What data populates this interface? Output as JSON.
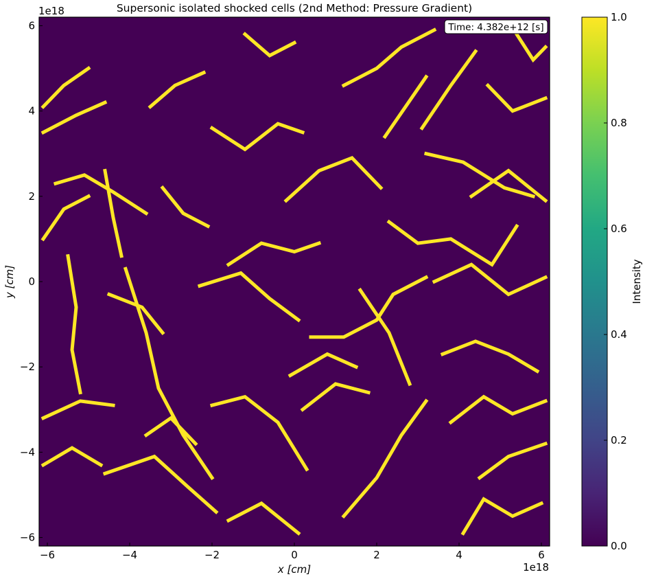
{
  "chart_data": {
    "type": "heatmap",
    "title": "Supersonic isolated shocked cells (2nd Method: Pressure Gradient)",
    "xlabel": "x [cm]",
    "ylabel": "y [cm]",
    "x_offset_label": "1e18",
    "y_offset_label": "1e18",
    "xlim": [
      -6.2,
      6.2
    ],
    "ylim": [
      -6.2,
      6.2
    ],
    "x_ticks": [
      -6,
      -4,
      -2,
      0,
      2,
      4,
      6
    ],
    "y_ticks": [
      -6,
      -4,
      -2,
      0,
      2,
      4,
      6
    ],
    "x_tick_labels": [
      "−6",
      "−4",
      "−2",
      "0",
      "2",
      "4",
      "6"
    ],
    "y_tick_labels": [
      "−6",
      "−4",
      "−2",
      "0",
      "2",
      "4",
      "6"
    ],
    "annotation": "Time: 4.382e+12 [s]",
    "annotation_position": "top-right",
    "grid": false,
    "colormap": "viridis",
    "colorbar": {
      "label": "Intensity",
      "range": [
        0,
        1
      ],
      "ticks": [
        0,
        0.2,
        0.4,
        0.6,
        0.8,
        1
      ],
      "tick_labels": [
        "0.0",
        "0.2",
        "0.4",
        "0.6",
        "0.8",
        "1.0"
      ]
    },
    "values_description_binary": [
      0,
      1
    ],
    "background_color": "#440154",
    "shock_color": "#fde725",
    "shock_fronts": [
      [
        [
          -6.1,
          3.5
        ],
        [
          -5.3,
          3.9
        ],
        [
          -4.6,
          4.2
        ]
      ],
      [
        [
          -6.1,
          4.1
        ],
        [
          -5.6,
          4.6
        ],
        [
          -5.0,
          5.0
        ]
      ],
      [
        [
          -5.8,
          2.3
        ],
        [
          -5.1,
          2.5
        ],
        [
          -4.4,
          2.1
        ],
        [
          -3.6,
          1.6
        ]
      ],
      [
        [
          -4.6,
          2.6
        ],
        [
          -4.4,
          1.5
        ],
        [
          -4.2,
          0.6
        ]
      ],
      [
        [
          -5.5,
          0.6
        ],
        [
          -5.3,
          -0.6
        ],
        [
          -5.4,
          -1.6
        ],
        [
          -5.2,
          -2.6
        ]
      ],
      [
        [
          -4.5,
          -0.3
        ],
        [
          -3.7,
          -0.6
        ],
        [
          -3.2,
          -1.2
        ]
      ],
      [
        [
          -4.1,
          0.3
        ],
        [
          -3.6,
          -1.2
        ],
        [
          -3.3,
          -2.5
        ],
        [
          -2.7,
          -3.6
        ],
        [
          -2.0,
          -4.6
        ]
      ],
      [
        [
          -3.5,
          4.1
        ],
        [
          -2.9,
          4.6
        ],
        [
          -2.2,
          4.9
        ]
      ],
      [
        [
          -2.0,
          3.6
        ],
        [
          -1.2,
          3.1
        ],
        [
          -0.4,
          3.7
        ],
        [
          0.2,
          3.5
        ]
      ],
      [
        [
          -1.6,
          0.4
        ],
        [
          -0.8,
          0.9
        ],
        [
          0.0,
          0.7
        ],
        [
          0.6,
          0.9
        ]
      ],
      [
        [
          -2.3,
          -0.1
        ],
        [
          -1.3,
          0.2
        ],
        [
          -0.6,
          -0.4
        ],
        [
          0.1,
          -0.9
        ]
      ],
      [
        [
          -0.2,
          1.9
        ],
        [
          0.6,
          2.6
        ],
        [
          1.4,
          2.9
        ],
        [
          2.1,
          2.2
        ]
      ],
      [
        [
          0.4,
          -1.3
        ],
        [
          1.2,
          -1.3
        ],
        [
          2.0,
          -0.9
        ],
        [
          2.4,
          -0.3
        ],
        [
          3.2,
          0.1
        ]
      ],
      [
        [
          -0.1,
          -2.2
        ],
        [
          0.8,
          -1.7
        ],
        [
          1.5,
          -2.0
        ]
      ],
      [
        [
          -6.1,
          -3.2
        ],
        [
          -5.2,
          -2.8
        ],
        [
          -4.4,
          -2.9
        ]
      ],
      [
        [
          -6.1,
          -4.3
        ],
        [
          -5.4,
          -3.9
        ],
        [
          -4.7,
          -4.3
        ]
      ],
      [
        [
          -4.6,
          -4.5
        ],
        [
          -3.4,
          -4.1
        ],
        [
          -2.6,
          -4.8
        ],
        [
          -1.9,
          -5.4
        ]
      ],
      [
        [
          -2.0,
          -2.9
        ],
        [
          -1.2,
          -2.7
        ],
        [
          -0.4,
          -3.3
        ],
        [
          0.3,
          -4.4
        ]
      ],
      [
        [
          0.2,
          -3.0
        ],
        [
          1.0,
          -2.4
        ],
        [
          1.8,
          -2.6
        ]
      ],
      [
        [
          -1.6,
          -5.6
        ],
        [
          -0.8,
          -5.2
        ],
        [
          0.1,
          -5.9
        ]
      ],
      [
        [
          1.2,
          -5.5
        ],
        [
          2.0,
          -4.6
        ],
        [
          2.6,
          -3.6
        ],
        [
          3.2,
          -2.8
        ]
      ],
      [
        [
          3.1,
          3.6
        ],
        [
          3.8,
          4.6
        ],
        [
          4.4,
          5.4
        ]
      ],
      [
        [
          3.2,
          3.0
        ],
        [
          4.1,
          2.8
        ],
        [
          5.1,
          2.2
        ],
        [
          5.8,
          2.0
        ]
      ],
      [
        [
          4.3,
          2.0
        ],
        [
          5.2,
          2.6
        ],
        [
          6.1,
          1.9
        ]
      ],
      [
        [
          3.4,
          0.0
        ],
        [
          4.3,
          0.4
        ],
        [
          5.2,
          -0.3
        ],
        [
          6.1,
          0.1
        ]
      ],
      [
        [
          2.3,
          1.4
        ],
        [
          3.0,
          0.9
        ],
        [
          3.8,
          1.0
        ],
        [
          4.8,
          0.4
        ],
        [
          5.4,
          1.3
        ]
      ],
      [
        [
          3.6,
          -1.7
        ],
        [
          4.4,
          -1.4
        ],
        [
          5.2,
          -1.7
        ],
        [
          5.9,
          -2.1
        ]
      ],
      [
        [
          3.8,
          -3.3
        ],
        [
          4.6,
          -2.7
        ],
        [
          5.3,
          -3.1
        ],
        [
          6.1,
          -2.8
        ]
      ],
      [
        [
          4.5,
          -4.6
        ],
        [
          5.2,
          -4.1
        ],
        [
          6.1,
          -3.8
        ]
      ],
      [
        [
          4.1,
          -5.9
        ],
        [
          4.6,
          -5.1
        ],
        [
          5.3,
          -5.5
        ],
        [
          6.0,
          -5.2
        ]
      ],
      [
        [
          1.2,
          4.6
        ],
        [
          2.0,
          5.0
        ],
        [
          2.6,
          5.5
        ],
        [
          3.4,
          5.9
        ]
      ],
      [
        [
          -1.2,
          5.8
        ],
        [
          -0.6,
          5.3
        ],
        [
          0.0,
          5.6
        ]
      ],
      [
        [
          2.2,
          3.4
        ],
        [
          2.7,
          4.1
        ],
        [
          3.2,
          4.8
        ]
      ],
      [
        [
          -3.2,
          2.2
        ],
        [
          -2.7,
          1.6
        ],
        [
          -2.1,
          1.3
        ]
      ],
      [
        [
          -6.1,
          1.0
        ],
        [
          -5.6,
          1.7
        ],
        [
          -5.0,
          2.0
        ]
      ],
      [
        [
          1.6,
          -0.2
        ],
        [
          2.3,
          -1.2
        ],
        [
          2.8,
          -2.4
        ]
      ],
      [
        [
          -3.6,
          -3.6
        ],
        [
          -3.0,
          -3.2
        ],
        [
          -2.4,
          -3.8
        ]
      ],
      [
        [
          4.7,
          4.6
        ],
        [
          5.3,
          4.0
        ],
        [
          6.1,
          4.3
        ]
      ],
      [
        [
          5.4,
          5.8
        ],
        [
          5.8,
          5.2
        ],
        [
          6.1,
          5.5
        ]
      ]
    ]
  }
}
